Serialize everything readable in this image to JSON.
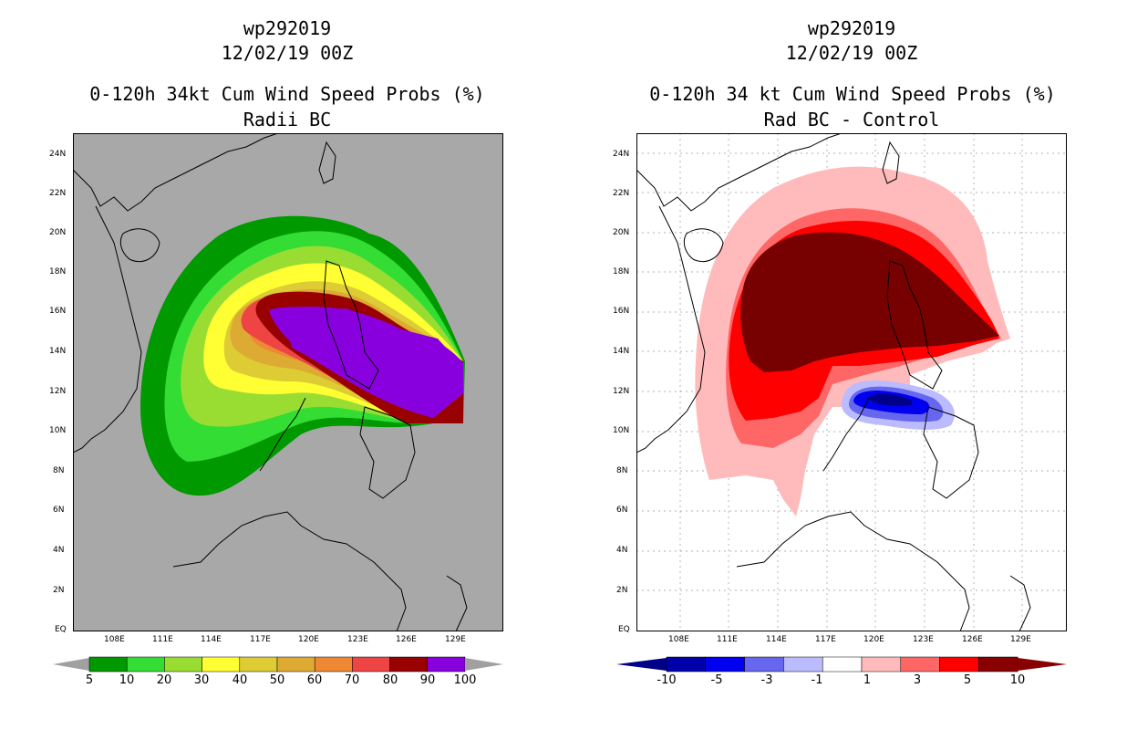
{
  "left": {
    "title1": "wp292019",
    "title2": "12/02/19 00Z",
    "title3": "0-120h 34kt Cum Wind Speed Probs (%)",
    "title4": "Radii BC",
    "colorbar": {
      "labels": [
        "5",
        "10",
        "20",
        "30",
        "40",
        "50",
        "60",
        "70",
        "80",
        "90",
        "100"
      ],
      "colors": [
        "#009900",
        "#33dd33",
        "#99dd33",
        "#ffff33",
        "#ddcc33",
        "#ddaa33",
        "#ee8833",
        "#ee4444",
        "#990000",
        "#8800dd"
      ],
      "end_color": "#a0a0a0"
    }
  },
  "right": {
    "title1": "wp292019",
    "title2": "12/02/19 00Z",
    "title3": "0-120h 34 kt Cum Wind Speed Probs (%)",
    "title4": "Rad BC - Control",
    "colorbar": {
      "labels": [
        "-10",
        "-5",
        "-3",
        "-1",
        "1",
        "3",
        "5",
        "10"
      ],
      "colors": [
        "#0000aa",
        "#0000ee",
        "#6666ee",
        "#bbbbff",
        "#ffffff",
        "#ffbbbb",
        "#ff6666",
        "#ff0000",
        "#880000"
      ],
      "end_colors": [
        "#000088",
        "#880000"
      ]
    }
  },
  "axes": {
    "lat_labels": [
      "24N",
      "22N",
      "20N",
      "18N",
      "16N",
      "14N",
      "12N",
      "10N",
      "8N",
      "6N",
      "4N",
      "2N",
      "EQ"
    ],
    "lon_labels": [
      "108E",
      "111E",
      "114E",
      "117E",
      "120E",
      "123E",
      "126E",
      "129E"
    ]
  }
}
